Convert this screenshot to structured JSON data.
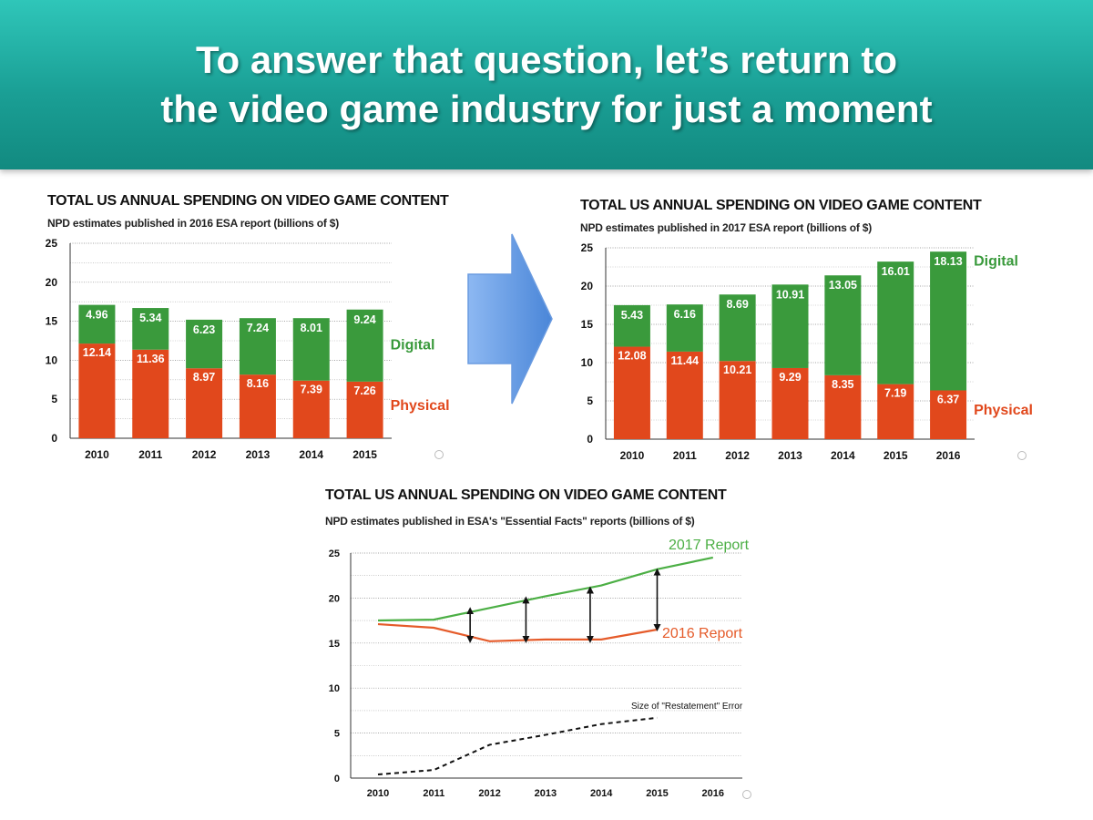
{
  "header": {
    "line1": "To answer that question, let’s return to",
    "line2": "the video game industry for just a moment"
  },
  "colors": {
    "digital": "#3a9a3c",
    "physical": "#e1481c",
    "report2017_line": "#4caf45",
    "report2016_line": "#e55b2a",
    "error_line": "#111111",
    "label_text": "#ffffff",
    "banner": "#1fa89d",
    "arrow": "#6fa4ea"
  },
  "chart_data": [
    {
      "id": "chart2016",
      "type": "bar",
      "stacked": true,
      "title": "TOTAL US ANNUAL SPENDING ON VIDEO GAME CONTENT",
      "subtitle": "NPD estimates published in 2016 ESA report (billions of $)",
      "categories": [
        "2010",
        "2011",
        "2012",
        "2013",
        "2014",
        "2015"
      ],
      "series": [
        {
          "name": "Physical",
          "values": [
            12.14,
            11.36,
            8.97,
            8.16,
            7.39,
            7.26
          ]
        },
        {
          "name": "Digital",
          "values": [
            4.96,
            5.34,
            6.23,
            7.24,
            8.01,
            9.24
          ]
        }
      ],
      "value_labels": {
        "Physical": [
          "12.14",
          "11.36",
          "8.97",
          "8.16",
          "7.39",
          "7.26"
        ],
        "Digital": [
          "4.96",
          "5.34",
          "6.23",
          "7.24",
          "8.01",
          "9.24"
        ]
      },
      "ylim": [
        0,
        25
      ],
      "yticks": [
        "0",
        "5",
        "10",
        "15",
        "20",
        "25"
      ],
      "grid": true,
      "legend": "right"
    },
    {
      "id": "chart2017",
      "type": "bar",
      "stacked": true,
      "title": "TOTAL US ANNUAL SPENDING ON VIDEO GAME CONTENT",
      "subtitle": "NPD estimates published in 2017 ESA report (billions of $)",
      "categories": [
        "2010",
        "2011",
        "2012",
        "2013",
        "2014",
        "2015",
        "2016"
      ],
      "series": [
        {
          "name": "Physical",
          "values": [
            12.08,
            11.44,
            10.21,
            9.29,
            8.35,
            7.19,
            6.37
          ]
        },
        {
          "name": "Digital",
          "values": [
            5.43,
            6.16,
            8.69,
            10.91,
            13.05,
            16.01,
            18.13
          ]
        }
      ],
      "value_labels": {
        "Physical": [
          "12.08",
          "11.44",
          "10.21",
          "9.29",
          "8.35",
          "7.19",
          "6.37"
        ],
        "Digital": [
          "5.43",
          "6.16",
          "8.69",
          "10.91",
          "13.05",
          "16.01",
          "18.13"
        ]
      },
      "ylim": [
        0,
        25
      ],
      "yticks": [
        "0",
        "5",
        "10",
        "15",
        "20",
        "25"
      ],
      "grid": true,
      "legend": "right"
    },
    {
      "id": "chartLine",
      "type": "line",
      "title": "TOTAL US ANNUAL SPENDING ON VIDEO GAME CONTENT",
      "subtitle": "NPD estimates published in ESA's \"Essential Facts\" reports (billions of $)",
      "categories": [
        "2010",
        "2011",
        "2012",
        "2013",
        "2014",
        "2015",
        "2016"
      ],
      "series": [
        {
          "name": "2017 Report",
          "values": [
            17.51,
            17.6,
            18.9,
            20.2,
            21.4,
            23.2,
            24.5
          ]
        },
        {
          "name": "2016 Report",
          "values": [
            17.1,
            16.7,
            15.2,
            15.4,
            15.4,
            16.5,
            null
          ]
        },
        {
          "name": "Size of  \"Restatement\" Error",
          "values": [
            0.4,
            0.9,
            3.7,
            4.8,
            6.0,
            6.7,
            null
          ],
          "dashed": true
        }
      ],
      "gap_arrows": [
        {
          "x": 1.65,
          "top": 18.6,
          "bottom": 15.4
        },
        {
          "x": 2.65,
          "top": 19.8,
          "bottom": 15.4
        },
        {
          "x": 3.8,
          "top": 20.9,
          "bottom": 15.4
        },
        {
          "x": 5.0,
          "top": 22.9,
          "bottom": 16.7
        }
      ],
      "ylim": [
        0,
        25
      ],
      "yticks": [
        "0",
        "5",
        "10",
        "15",
        "20",
        "25"
      ],
      "grid": true,
      "legend": "inline"
    }
  ]
}
